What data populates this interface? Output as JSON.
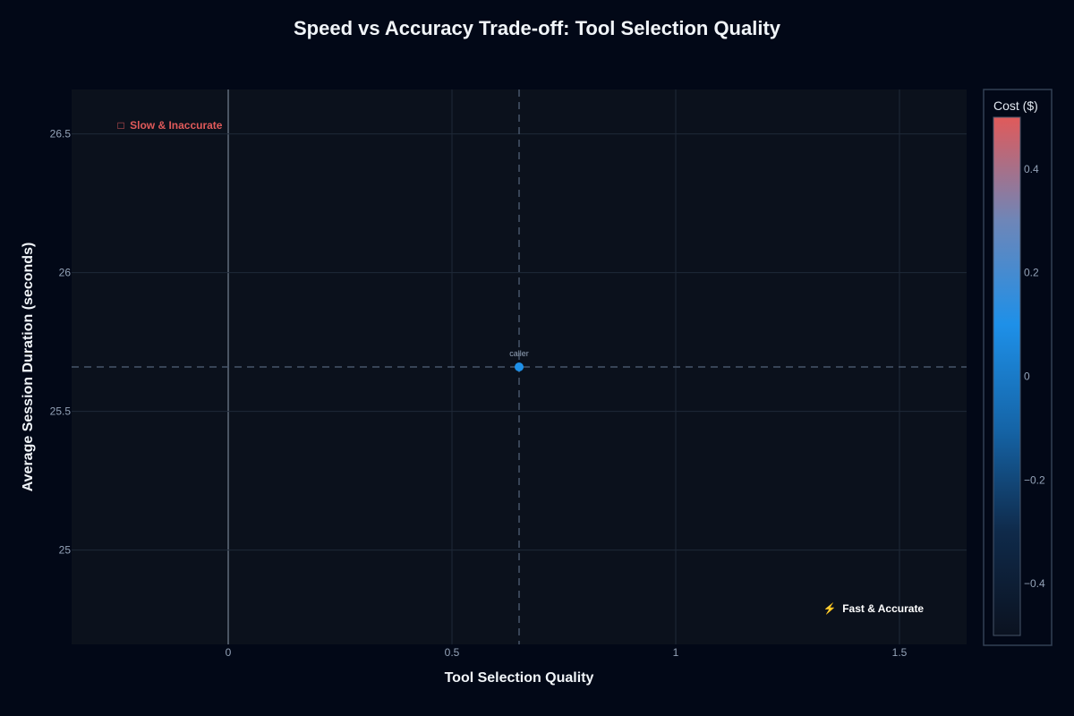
{
  "chart_data": {
    "type": "scatter",
    "title": "Speed vs Accuracy Trade-off: Tool Selection Quality",
    "xlabel": "Tool Selection Quality",
    "ylabel": "Average Session Duration (seconds)",
    "xlim": [
      -0.35,
      1.65
    ],
    "ylim": [
      24.66,
      26.66
    ],
    "x_ticks": [
      0,
      0.5,
      1,
      1.5
    ],
    "x_tick_labels": [
      "0",
      "0.5",
      "1",
      "1.5"
    ],
    "y_ticks": [
      25,
      25.5,
      26,
      26.5
    ],
    "y_tick_labels": [
      "25",
      "25.5",
      "26",
      "26.5"
    ],
    "grid": true,
    "reference_lines": {
      "x": 0.65,
      "y": 25.66
    },
    "points": [
      {
        "label": "caller",
        "x": 0.65,
        "y": 25.66,
        "cost": 0
      }
    ],
    "colorbar": {
      "title": "Cost ($)",
      "range": [
        -0.5,
        0.5
      ],
      "ticks": [
        0.4,
        0.2,
        0,
        -0.2,
        -0.4
      ],
      "tick_labels": [
        "0.4",
        "0.2",
        "0",
        "−0.2",
        "−0.4"
      ],
      "colorscale": [
        "#0b1220",
        "#0f2a4a",
        "#1565a8",
        "#1e90e8",
        "#6e86b8",
        "#e05a5a"
      ]
    },
    "annotations": {
      "top_left": {
        "icon": "□",
        "text": "Slow & Inaccurate",
        "color": "#e05a5a"
      },
      "bottom_right": {
        "icon": "⚡",
        "text": "Fast & Accurate",
        "color": "#ffffff"
      }
    }
  },
  "colors": {
    "background": "#020817",
    "plot_background": "#0b111c",
    "marker": "#1e90e8",
    "grid": "#1f2937",
    "reference_line": "#475569"
  }
}
